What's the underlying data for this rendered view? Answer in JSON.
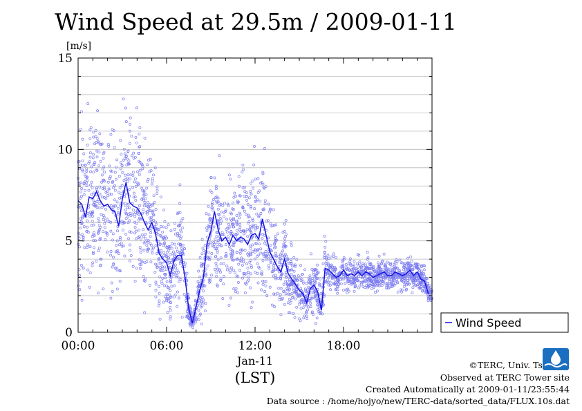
{
  "chart_data": {
    "type": "scatter",
    "title": "Wind Speed at 29.5m / 2009-01-11",
    "ylabel": "[m/s]",
    "xlabel": "(LST)",
    "date_label": "Jan-11",
    "ylim": [
      0,
      15
    ],
    "xlim": [
      "00:00",
      "24:00"
    ],
    "yticks": [
      "0",
      "5",
      "10",
      "15"
    ],
    "xticks": [
      "00:00",
      "06:00",
      "12:00",
      "18:00"
    ],
    "grid": true,
    "legend": {
      "placement": "right",
      "label": "Wind Speed"
    },
    "colors": {
      "line": "#1414e6",
      "points": "#7c7cf0"
    },
    "series": [
      {
        "name": "Wind Speed",
        "time_hours": [
          0.0,
          0.25,
          0.5,
          0.75,
          1.0,
          1.25,
          1.5,
          1.75,
          2.0,
          2.25,
          2.5,
          2.75,
          3.0,
          3.25,
          3.5,
          3.75,
          4.0,
          4.25,
          4.5,
          4.75,
          5.0,
          5.25,
          5.5,
          5.75,
          6.0,
          6.25,
          6.5,
          6.75,
          7.0,
          7.25,
          7.5,
          7.75,
          8.0,
          8.25,
          8.5,
          8.75,
          9.0,
          9.25,
          9.5,
          9.75,
          10.0,
          10.25,
          10.5,
          10.75,
          11.0,
          11.25,
          11.5,
          11.75,
          12.0,
          12.25,
          12.5,
          12.75,
          13.0,
          13.25,
          13.5,
          13.75,
          14.0,
          14.25,
          14.5,
          14.75,
          15.0,
          15.25,
          15.5,
          15.75,
          16.0,
          16.25,
          16.5,
          16.75,
          17.0,
          17.25,
          17.5,
          17.75,
          18.0,
          18.25,
          18.5,
          18.75,
          19.0,
          19.25,
          19.5,
          19.75,
          20.0,
          20.25,
          20.5,
          20.75,
          21.0,
          21.25,
          21.5,
          21.75,
          22.0,
          22.25,
          22.5,
          22.75,
          23.0,
          23.25,
          23.5,
          23.75
        ],
        "values": [
          7.2,
          7.0,
          6.3,
          7.4,
          7.3,
          7.7,
          7.2,
          6.9,
          7.0,
          6.7,
          6.6,
          5.8,
          7.3,
          8.2,
          7.1,
          6.9,
          6.8,
          6.5,
          6.0,
          5.6,
          6.0,
          5.4,
          4.3,
          4.0,
          3.8,
          3.1,
          3.9,
          4.2,
          4.2,
          3.0,
          1.3,
          0.5,
          1.4,
          2.3,
          3.0,
          4.9,
          5.5,
          6.6,
          5.6,
          5.0,
          5.2,
          4.8,
          5.3,
          5.0,
          5.2,
          5.1,
          4.8,
          5.3,
          5.4,
          5.1,
          6.2,
          5.3,
          4.4,
          4.0,
          3.6,
          3.3,
          4.0,
          3.2,
          2.9,
          2.6,
          2.3,
          2.1,
          1.6,
          2.4,
          2.6,
          2.2,
          1.2,
          3.5,
          3.4,
          3.2,
          3.0,
          3.1,
          3.4,
          3.1,
          3.2,
          3.1,
          3.3,
          3.1,
          3.3,
          3.2,
          3.0,
          3.1,
          3.2,
          3.3,
          3.1,
          3.1,
          3.3,
          3.2,
          3.1,
          3.2,
          3.4,
          3.1,
          3.3,
          2.9,
          2.8,
          2.1
        ]
      }
    ]
  },
  "footer": {
    "copyright": "©TERC, Univ. Tsukuba",
    "observed": "Observed at TERC Tower site",
    "created": "Created Automatically at 2009-01-11/23:55:44",
    "source": "Data source : /home/hojyo/new/TERC-data/sorted_data/FLUX.10s.dat"
  }
}
